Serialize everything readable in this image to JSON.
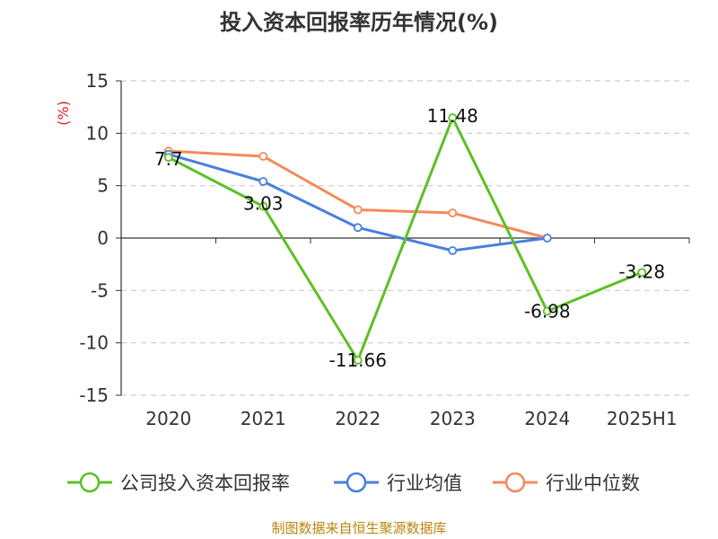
{
  "chart_data": {
    "type": "line",
    "title": "投入资本回报率历年情况(%)",
    "ylabel": "(%)",
    "xlabel": "",
    "categories": [
      "2020",
      "2021",
      "2022",
      "2023",
      "2024",
      "2025H1"
    ],
    "ylim": [
      -15,
      15
    ],
    "yticks": [
      "15",
      "10",
      "5",
      "0",
      "-5",
      "-10",
      "-15"
    ],
    "grid": true,
    "legend_position": "bottom",
    "series": [
      {
        "name": "公司投入资本回报率",
        "color": "#5cc023",
        "values": [
          7.7,
          3.03,
          -11.66,
          11.48,
          -6.98,
          -3.28
        ],
        "labels": [
          "7.7",
          "3.03",
          "-11.66",
          "11.48",
          "-6.98",
          "-3.28"
        ]
      },
      {
        "name": "行业均值",
        "color": "#4a7fdc",
        "values": [
          8.0,
          5.4,
          1.0,
          -1.2,
          0.0,
          null
        ],
        "labels": []
      },
      {
        "name": "行业中位数",
        "color": "#f5895a",
        "values": [
          8.3,
          7.8,
          2.7,
          2.4,
          0.0,
          null
        ],
        "labels": []
      }
    ]
  },
  "source": "制图数据来自恒生聚源数据库"
}
